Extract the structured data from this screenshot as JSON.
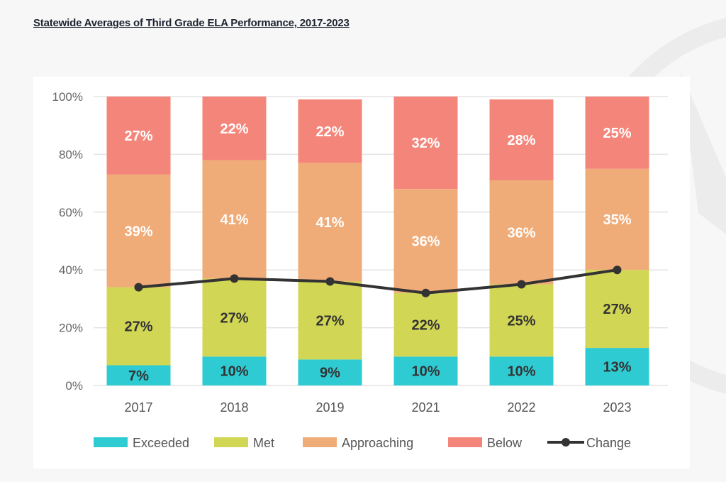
{
  "title": "Statewide Averages of Third Grade ELA Performance, 2017-2023",
  "chart_data": {
    "type": "bar",
    "stacked": true,
    "title": "Statewide Averages of Third Grade ELA Performance, 2017-2023",
    "xlabel": "",
    "ylabel": "",
    "ylim": [
      0,
      100
    ],
    "yticks": [
      "0%",
      "20%",
      "40%",
      "60%",
      "80%",
      "100%"
    ],
    "ytick_values": [
      0,
      20,
      40,
      60,
      80,
      100
    ],
    "grid": true,
    "legend_position": "bottom",
    "categories": [
      "2017",
      "2018",
      "2019",
      "2021",
      "2022",
      "2023"
    ],
    "series": [
      {
        "name": "Exceeded",
        "color": "#2ECBD3",
        "label_color": "#333333",
        "values": [
          7,
          10,
          9,
          10,
          10,
          13
        ],
        "labels": [
          "7%",
          "10%",
          "9%",
          "10%",
          "10%",
          "13%"
        ]
      },
      {
        "name": "Met",
        "color": "#D2D655",
        "label_color": "#333333",
        "values": [
          27,
          27,
          27,
          22,
          25,
          27
        ],
        "labels": [
          "27%",
          "27%",
          "27%",
          "22%",
          "25%",
          "27%"
        ]
      },
      {
        "name": "Approaching",
        "color": "#F0AC78",
        "label_color": "#ffffff",
        "values": [
          39,
          41,
          41,
          36,
          36,
          35
        ],
        "labels": [
          "39%",
          "41%",
          "41%",
          "36%",
          "36%",
          "35%"
        ]
      },
      {
        "name": "Below",
        "color": "#F4857A",
        "label_color": "#ffffff",
        "values": [
          27,
          22,
          22,
          32,
          28,
          25
        ],
        "labels": [
          "27%",
          "22%",
          "22%",
          "32%",
          "28%",
          "25%"
        ]
      }
    ],
    "line": {
      "name": "Change",
      "type": "line",
      "color": "#333333",
      "values": [
        34,
        37,
        36,
        32,
        35,
        40
      ]
    }
  }
}
